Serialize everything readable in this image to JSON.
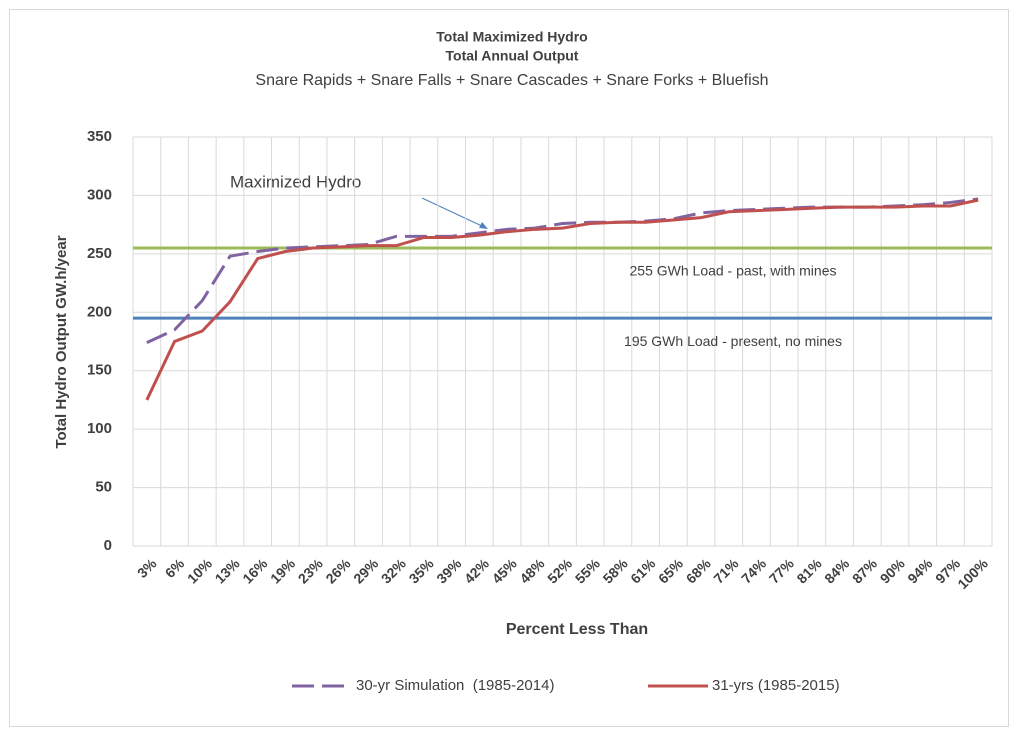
{
  "chart_data": {
    "type": "line",
    "title": "Total Maximized Hydro",
    "subtitle": "Total Annual Output",
    "subtitle2": "Snare Rapids + Snare Falls + Snare Cascades + Snare Forks + Bluefish",
    "x_label": "Percent Less Than",
    "y_label": "Total Hydro Output GW.h/year",
    "categories": [
      "3%",
      "6%",
      "10%",
      "13%",
      "16%",
      "19%",
      "23%",
      "26%",
      "29%",
      "32%",
      "35%",
      "39%",
      "42%",
      "45%",
      "48%",
      "52%",
      "55%",
      "58%",
      "61%",
      "65%",
      "68%",
      "71%",
      "74%",
      "77%",
      "81%",
      "84%",
      "87%",
      "90%",
      "94%",
      "97%",
      "100%"
    ],
    "series": [
      {
        "name": "30-yr Simulation  (1985-2014)",
        "color": "#8064a2",
        "dashed": true,
        "values": [
          174,
          185,
          210,
          248,
          252,
          255,
          256,
          257,
          258,
          265,
          265,
          265,
          268,
          271,
          272,
          276,
          277,
          277,
          278,
          280,
          285,
          287,
          288,
          289,
          290,
          290,
          290,
          291,
          292,
          294,
          297
        ]
      },
      {
        "name": "31-yrs (1985-2015)",
        "color": "#c0504d",
        "dashed": false,
        "values": [
          125,
          175,
          184,
          209,
          246,
          252,
          255,
          256,
          257,
          257,
          264,
          264,
          266,
          269,
          271,
          272,
          276,
          277,
          277,
          279,
          281,
          286,
          287,
          288,
          289,
          290,
          290,
          290,
          291,
          291,
          296
        ]
      }
    ],
    "reference_lines": [
      {
        "value": 255,
        "label": "255 GWh Load - past, with mines",
        "color": "#9bbb59"
      },
      {
        "value": 195,
        "label": "195 GWh Load - present, no mines",
        "color": "#4f81bd"
      }
    ],
    "annotation": "Maximized Hydro",
    "ylim": [
      0,
      350
    ],
    "yticks": [
      0,
      50,
      100,
      150,
      200,
      250,
      300,
      350
    ],
    "grid": true
  }
}
